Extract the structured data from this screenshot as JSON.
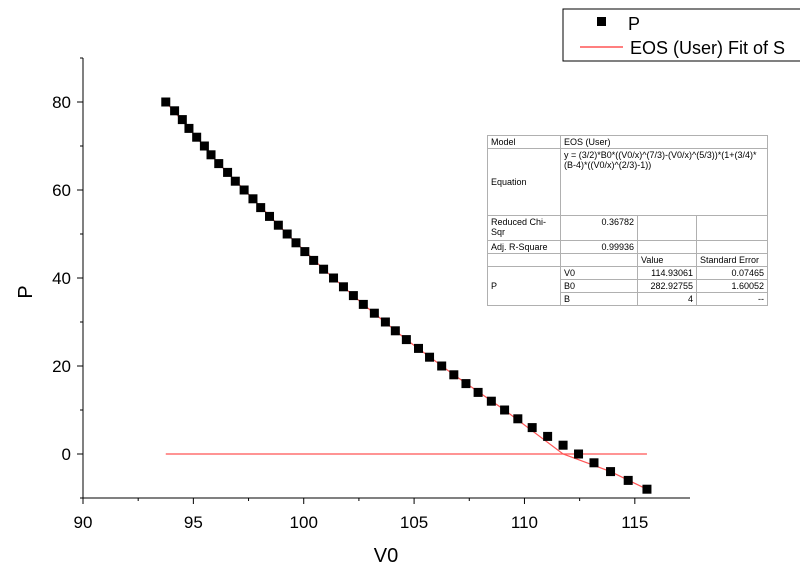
{
  "chart_data": {
    "type": "scatter",
    "xlabel": "V0",
    "ylabel": "P",
    "xlim": [
      90,
      117.5
    ],
    "ylim": [
      -10,
      90
    ],
    "xticks": [
      90,
      95,
      100,
      105,
      110,
      115
    ],
    "yticks": [
      0,
      20,
      40,
      60,
      80
    ],
    "grid": false,
    "legend_position": "top-right",
    "series": [
      {
        "name": "P",
        "kind": "scatter",
        "marker": "square",
        "color": "#000000",
        "x": [
          93.75,
          94.15,
          94.5,
          94.8,
          95.15,
          95.5,
          95.8,
          96.15,
          96.55,
          96.9,
          97.3,
          97.7,
          98.05,
          98.45,
          98.85,
          99.25,
          99.65,
          100.05,
          100.45,
          100.9,
          101.35,
          101.8,
          102.25,
          102.7,
          103.2,
          103.7,
          104.15,
          104.65,
          105.2,
          105.7,
          106.25,
          106.8,
          107.35,
          107.9,
          108.5,
          109.1,
          109.7,
          110.35,
          111.05,
          111.75,
          112.45,
          113.15,
          113.9,
          114.7,
          115.55
        ],
        "y": [
          80,
          78,
          76,
          74,
          72,
          70,
          68,
          66,
          64,
          62,
          60,
          58,
          56,
          54,
          52,
          50,
          48,
          46,
          44,
          42,
          40,
          38,
          36,
          34,
          32,
          30,
          28,
          26,
          24,
          22,
          20,
          18,
          16,
          14,
          12,
          10,
          8,
          6,
          4,
          2,
          0,
          -2,
          -4,
          -6,
          -8
        ]
      },
      {
        "name": "EOS (User) Fit of S",
        "kind": "line",
        "color": "#ff5555",
        "x": [
          93.75,
          94.8,
          96.15,
          97.7,
          99.25,
          100.9,
          102.7,
          104.65,
          106.8,
          109.1,
          111.75,
          113.9,
          115.55
        ],
        "y": [
          80,
          74,
          66,
          58,
          50,
          42,
          34,
          26,
          18,
          10,
          0,
          -4,
          -8
        ]
      },
      {
        "name": "",
        "kind": "line",
        "color": "#ff5555",
        "x": [
          93.75,
          115.55
        ],
        "y": [
          0,
          0
        ]
      }
    ]
  },
  "fit_table": {
    "model_label": "Model",
    "model_value": "EOS (User)",
    "equation_label": "Equation",
    "equation_value": "y = (3/2)*B0*((V0/x)^(7/3)-(V0/x)^(5/3))*(1+(3/4)*(B-4)*((V0/x)^(2/3)-1))",
    "chi_label": "Reduced Chi-Sqr",
    "chi_value": "0.36782",
    "r2_label": "Adj. R-Square",
    "r2_value": "0.99936",
    "value_header": "Value",
    "stderr_header": "Standard Error",
    "param_group": "P",
    "params": [
      {
        "name": "V0",
        "value": "114.93061",
        "stderr": "0.07465"
      },
      {
        "name": "B0",
        "value": "282.92755",
        "stderr": "1.60052"
      },
      {
        "name": "B",
        "value": "4",
        "stderr": "--"
      }
    ]
  }
}
